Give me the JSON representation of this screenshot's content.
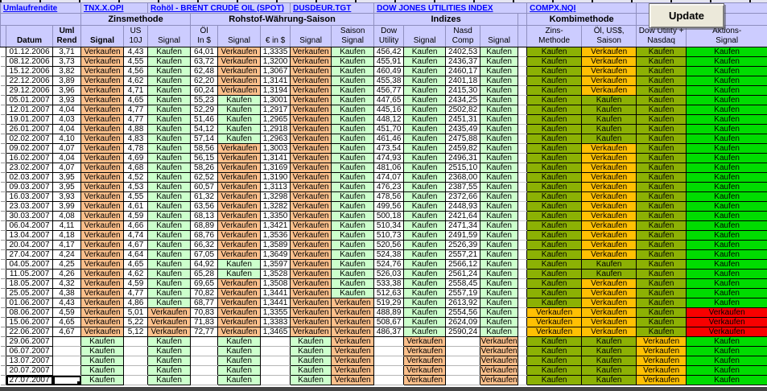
{
  "links": {
    "umlaufrendite": "Umlaufrendite",
    "tnx": "TNX.X.OPI",
    "rohoel": "Rohöl - BRENT CRUDE OIL (SPOT)",
    "dusdeur": "DUSDEUR.TGT",
    "dow_jones": "DOW JONES UTILITIES INDEX",
    "compx": "COMPX.NQI"
  },
  "update_button": "Update",
  "groups": {
    "zinsmethode": "Zinsmethode",
    "rohstoff": "Rohstof-Währung-Saison",
    "indizes": "Indizes",
    "kombimethode": "Kombimethode"
  },
  "header_columns": [
    {
      "t": "",
      "b": "",
      "bold": false
    },
    {
      "t": "",
      "b": "Datum",
      "bold": true
    },
    {
      "t": "Uml",
      "b": "Rend",
      "bold": true
    },
    {
      "t": "",
      "b": "Signal",
      "bold": true
    },
    {
      "t": "US",
      "b": "10J",
      "bold": false
    },
    {
      "t": "",
      "b": "Signal",
      "bold": false
    },
    {
      "t": "Öl",
      "b": "In $",
      "bold": false
    },
    {
      "t": "",
      "b": "Signal",
      "bold": false
    },
    {
      "t": "",
      "b": "€ in $",
      "bold": false
    },
    {
      "t": "",
      "b": "Signal",
      "bold": false
    },
    {
      "t": "Saison",
      "b": "Signal",
      "bold": false
    },
    {
      "t": "Dow",
      "b": "Utility",
      "bold": false
    },
    {
      "t": "",
      "b": "Signal",
      "bold": false
    },
    {
      "t": "Nasd",
      "b": "Comp",
      "bold": false
    },
    {
      "t": "",
      "b": "Signal",
      "bold": false
    },
    {
      "t": "",
      "b": "",
      "bold": false
    },
    {
      "t": "Zins-",
      "b": "Methode",
      "bold": false
    },
    {
      "t": "Öl, US$,",
      "b": "Saison",
      "bold": false
    },
    {
      "t": "Dow Utility +",
      "b": "Nasdaq",
      "bold": false
    },
    {
      "t": "Aktions-",
      "b": "Signal",
      "bold": false
    }
  ],
  "colors": {
    "header": "#CCCCFF",
    "link": "#0000FE",
    "buy": "#CCFFCC",
    "sell": "#FBBF8B",
    "kombi_buy": "#8CB104",
    "kombi_sell": "#FFC003",
    "action_buy": "#00DC00",
    "action_sell": "#F80000"
  },
  "rows": [
    [
      "01.12.2006",
      "3,71",
      "Verkaufen",
      "4,43",
      "Kaufen",
      "64,01",
      "Verkaufen",
      "1,3335",
      "Verkaufen",
      "Kaufen",
      "456,42",
      "Kaufen",
      "2402,53",
      "Kaufen",
      "Kaufen",
      "Verkaufen",
      "Kaufen",
      "Kaufen"
    ],
    [
      "08.12.2006",
      "3,73",
      "Verkaufen",
      "4,55",
      "Kaufen",
      "63,72",
      "Verkaufen",
      "1,3200",
      "Verkaufen",
      "Kaufen",
      "455,91",
      "Kaufen",
      "2436,37",
      "Kaufen",
      "Kaufen",
      "Verkaufen",
      "Kaufen",
      "Kaufen"
    ],
    [
      "15.12.2006",
      "3,82",
      "Verkaufen",
      "4,56",
      "Kaufen",
      "62,48",
      "Verkaufen",
      "1,3067",
      "Verkaufen",
      "Kaufen",
      "460,49",
      "Kaufen",
      "2460,17",
      "Kaufen",
      "Kaufen",
      "Verkaufen",
      "Kaufen",
      "Kaufen"
    ],
    [
      "22.12.2006",
      "3,89",
      "Verkaufen",
      "4,62",
      "Kaufen",
      "62,20",
      "Verkaufen",
      "1,3141",
      "Verkaufen",
      "Kaufen",
      "455,38",
      "Kaufen",
      "2401,18",
      "Kaufen",
      "Kaufen",
      "Verkaufen",
      "Kaufen",
      "Kaufen"
    ],
    [
      "29.12.2006",
      "3,96",
      "Verkaufen",
      "4,71",
      "Kaufen",
      "60,24",
      "Verkaufen",
      "1,3194",
      "Verkaufen",
      "Kaufen",
      "456,77",
      "Kaufen",
      "2415,30",
      "Kaufen",
      "Kaufen",
      "Verkaufen",
      "Kaufen",
      "Kaufen"
    ],
    [
      "05.01.2007",
      "3,93",
      "Verkaufen",
      "4,65",
      "Kaufen",
      "55,23",
      "Kaufen",
      "1,3001",
      "Verkaufen",
      "Kaufen",
      "447,65",
      "Kaufen",
      "2434,25",
      "Kaufen",
      "Kaufen",
      "Kaufen",
      "Kaufen",
      "Kaufen"
    ],
    [
      "12.01.2007",
      "4,04",
      "Verkaufen",
      "4,77",
      "Kaufen",
      "52,29",
      "Kaufen",
      "1,2917",
      "Verkaufen",
      "Kaufen",
      "445,16",
      "Kaufen",
      "2502,82",
      "Kaufen",
      "Kaufen",
      "Kaufen",
      "Kaufen",
      "Kaufen"
    ],
    [
      "19.01.2007",
      "4,03",
      "Verkaufen",
      "4,77",
      "Kaufen",
      "51,46",
      "Kaufen",
      "1,2965",
      "Verkaufen",
      "Kaufen",
      "448,12",
      "Kaufen",
      "2451,31",
      "Kaufen",
      "Kaufen",
      "Kaufen",
      "Kaufen",
      "Kaufen"
    ],
    [
      "26.01.2007",
      "4,04",
      "Verkaufen",
      "4,88",
      "Kaufen",
      "54,12",
      "Kaufen",
      "1,2918",
      "Verkaufen",
      "Kaufen",
      "451,70",
      "Kaufen",
      "2435,49",
      "Kaufen",
      "Kaufen",
      "Kaufen",
      "Kaufen",
      "Kaufen"
    ],
    [
      "02.02.2007",
      "4,10",
      "Verkaufen",
      "4,83",
      "Kaufen",
      "57,14",
      "Kaufen",
      "1,2963",
      "Verkaufen",
      "Kaufen",
      "461,46",
      "Kaufen",
      "2475,88",
      "Kaufen",
      "Kaufen",
      "Kaufen",
      "Kaufen",
      "Kaufen"
    ],
    [
      "09.02.2007",
      "4,07",
      "Verkaufen",
      "4,78",
      "Kaufen",
      "58,56",
      "Verkaufen",
      "1,3003",
      "Verkaufen",
      "Kaufen",
      "473,54",
      "Kaufen",
      "2459,82",
      "Kaufen",
      "Kaufen",
      "Verkaufen",
      "Kaufen",
      "Kaufen"
    ],
    [
      "16.02.2007",
      "4,04",
      "Verkaufen",
      "4,69",
      "Kaufen",
      "56,15",
      "Verkaufen",
      "1,3141",
      "Verkaufen",
      "Kaufen",
      "474,93",
      "Kaufen",
      "2496,31",
      "Kaufen",
      "Kaufen",
      "Verkaufen",
      "Kaufen",
      "Kaufen"
    ],
    [
      "23.02.2007",
      "4,07",
      "Verkaufen",
      "4,68",
      "Kaufen",
      "58,26",
      "Verkaufen",
      "1,3169",
      "Verkaufen",
      "Kaufen",
      "481,06",
      "Kaufen",
      "2515,10",
      "Kaufen",
      "Kaufen",
      "Verkaufen",
      "Kaufen",
      "Kaufen"
    ],
    [
      "02.03.2007",
      "3,95",
      "Verkaufen",
      "4,52",
      "Kaufen",
      "62,52",
      "Verkaufen",
      "1,3190",
      "Verkaufen",
      "Kaufen",
      "474,07",
      "Kaufen",
      "2368,00",
      "Kaufen",
      "Kaufen",
      "Verkaufen",
      "Kaufen",
      "Kaufen"
    ],
    [
      "09.03.2007",
      "3,95",
      "Verkaufen",
      "4,53",
      "Kaufen",
      "60,57",
      "Verkaufen",
      "1,3113",
      "Verkaufen",
      "Kaufen",
      "476,23",
      "Kaufen",
      "2387,55",
      "Kaufen",
      "Kaufen",
      "Verkaufen",
      "Kaufen",
      "Kaufen"
    ],
    [
      "16.03.2007",
      "3,93",
      "Verkaufen",
      "4,55",
      "Kaufen",
      "61,32",
      "Verkaufen",
      "1,3298",
      "Verkaufen",
      "Kaufen",
      "478,56",
      "Kaufen",
      "2372,66",
      "Kaufen",
      "Kaufen",
      "Verkaufen",
      "Kaufen",
      "Kaufen"
    ],
    [
      "23.03.2007",
      "3,99",
      "Verkaufen",
      "4,61",
      "Kaufen",
      "63,56",
      "Verkaufen",
      "1,3282",
      "Verkaufen",
      "Kaufen",
      "499,56",
      "Kaufen",
      "2448,93",
      "Kaufen",
      "Kaufen",
      "Verkaufen",
      "Kaufen",
      "Kaufen"
    ],
    [
      "30.03.2007",
      "4,08",
      "Verkaufen",
      "4,59",
      "Kaufen",
      "68,13",
      "Verkaufen",
      "1,3350",
      "Verkaufen",
      "Kaufen",
      "500,18",
      "Kaufen",
      "2421,64",
      "Kaufen",
      "Kaufen",
      "Verkaufen",
      "Kaufen",
      "Kaufen"
    ],
    [
      "06.04.2007",
      "4,11",
      "Verkaufen",
      "4,66",
      "Kaufen",
      "68,89",
      "Verkaufen",
      "1,3421",
      "Verkaufen",
      "Kaufen",
      "510,34",
      "Kaufen",
      "2471,34",
      "Kaufen",
      "Kaufen",
      "Verkaufen",
      "Kaufen",
      "Kaufen"
    ],
    [
      "13.04.2007",
      "4,18",
      "Verkaufen",
      "4,74",
      "Kaufen",
      "68,76",
      "Verkaufen",
      "1,3536",
      "Verkaufen",
      "Kaufen",
      "510,73",
      "Kaufen",
      "2491,59",
      "Kaufen",
      "Kaufen",
      "Verkaufen",
      "Kaufen",
      "Kaufen"
    ],
    [
      "20.04.2007",
      "4,17",
      "Verkaufen",
      "4,67",
      "Kaufen",
      "66,32",
      "Verkaufen",
      "1,3589",
      "Verkaufen",
      "Kaufen",
      "520,56",
      "Kaufen",
      "2526,39",
      "Kaufen",
      "Kaufen",
      "Verkaufen",
      "Kaufen",
      "Kaufen"
    ],
    [
      "27.04.2007",
      "4,24",
      "Verkaufen",
      "4,64",
      "Kaufen",
      "67,05",
      "Verkaufen",
      "1,3649",
      "Verkaufen",
      "Kaufen",
      "524,38",
      "Kaufen",
      "2557,21",
      "Kaufen",
      "Kaufen",
      "Verkaufen",
      "Kaufen",
      "Kaufen"
    ],
    [
      "04.05.2007",
      "4,25",
      "Verkaufen",
      "4,65",
      "Kaufen",
      "64,92",
      "Kaufen",
      "1,3597",
      "Verkaufen",
      "Kaufen",
      "524,76",
      "Kaufen",
      "2566,12",
      "Kaufen",
      "Kaufen",
      "Kaufen",
      "Kaufen",
      "Kaufen"
    ],
    [
      "11.05.2007",
      "4,26",
      "Verkaufen",
      "4,62",
      "Kaufen",
      "65,28",
      "Kaufen",
      "1,3528",
      "Verkaufen",
      "Kaufen",
      "526,03",
      "Kaufen",
      "2561,24",
      "Kaufen",
      "Kaufen",
      "Kaufen",
      "Kaufen",
      "Kaufen"
    ],
    [
      "18.05.2007",
      "4,32",
      "Verkaufen",
      "4,59",
      "Kaufen",
      "69,65",
      "Verkaufen",
      "1,3508",
      "Verkaufen",
      "Kaufen",
      "533,38",
      "Kaufen",
      "2558,45",
      "Kaufen",
      "Kaufen",
      "Verkaufen",
      "Kaufen",
      "Kaufen"
    ],
    [
      "25.05.2007",
      "4,38",
      "Verkaufen",
      "4,77",
      "Kaufen",
      "70,82",
      "Verkaufen",
      "1,3441",
      "Verkaufen",
      "Kaufen",
      "512,63",
      "Kaufen",
      "2557,19",
      "Kaufen",
      "Kaufen",
      "Verkaufen",
      "Kaufen",
      "Kaufen"
    ],
    [
      "01.06.2007",
      "4,43",
      "Verkaufen",
      "4,86",
      "Kaufen",
      "68,77",
      "Verkaufen",
      "1,3441",
      "Verkaufen",
      "Verkaufen",
      "519,29",
      "Kaufen",
      "2613,92",
      "Kaufen",
      "Kaufen",
      "Verkaufen",
      "Kaufen",
      "Kaufen"
    ],
    [
      "08.06.2007",
      "4,59",
      "Verkaufen",
      "5,01",
      "Verkaufen",
      "70,83",
      "Verkaufen",
      "1,3355",
      "Verkaufen",
      "Verkaufen",
      "488,89",
      "Kaufen",
      "2554,56",
      "Kaufen",
      "Verkaufen",
      "Verkaufen",
      "Kaufen",
      "Verkaufen"
    ],
    [
      "15.06.2007",
      "4,65",
      "Verkaufen",
      "5,22",
      "Verkaufen",
      "71,83",
      "Verkaufen",
      "1,3383",
      "Verkaufen",
      "Verkaufen",
      "508,67",
      "Kaufen",
      "2624,09",
      "Kaufen",
      "Verkaufen",
      "Verkaufen",
      "Kaufen",
      "Verkaufen"
    ],
    [
      "22.06.2007",
      "4,67",
      "Verkaufen",
      "5,12",
      "Verkaufen",
      "72,77",
      "Verkaufen",
      "1,3465",
      "Verkaufen",
      "Verkaufen",
      "486,37",
      "Kaufen",
      "2590,24",
      "Kaufen",
      "Verkaufen",
      "Verkaufen",
      "Kaufen",
      "Verkaufen"
    ],
    [
      "29.06.2007",
      "",
      "Kaufen",
      "",
      "Kaufen",
      "",
      "Kaufen",
      "",
      "Kaufen",
      "Verkaufen",
      "",
      "Verkaufen",
      "",
      "Verkaufen",
      "Kaufen",
      "Kaufen",
      "Verkaufen",
      "Kaufen"
    ],
    [
      "06.07.2007",
      "",
      "Kaufen",
      "",
      "Kaufen",
      "",
      "Kaufen",
      "",
      "Kaufen",
      "Verkaufen",
      "",
      "Verkaufen",
      "",
      "Verkaufen",
      "Kaufen",
      "Kaufen",
      "Verkaufen",
      "Kaufen"
    ],
    [
      "13.07.2007",
      "",
      "Kaufen",
      "",
      "Kaufen",
      "",
      "Kaufen",
      "",
      "Kaufen",
      "Verkaufen",
      "",
      "Verkaufen",
      "",
      "Verkaufen",
      "Kaufen",
      "Kaufen",
      "Verkaufen",
      "Kaufen"
    ],
    [
      "20.07.2007",
      "",
      "Kaufen",
      "",
      "Kaufen",
      "",
      "Kaufen",
      "",
      "Kaufen",
      "Verkaufen",
      "",
      "Verkaufen",
      "",
      "Verkaufen",
      "Kaufen",
      "Kaufen",
      "Verkaufen",
      "Kaufen"
    ],
    [
      "27.07.2007",
      "",
      "Kaufen",
      "",
      "Kaufen",
      "",
      "Kaufen",
      "",
      "Kaufen",
      "Verkaufen",
      "",
      "Verkaufen",
      "",
      "Verkaufen",
      "Kaufen",
      "Kaufen",
      "Verkaufen",
      "Kaufen"
    ]
  ],
  "buy_label": "Kaufen",
  "sell_label": "Verkaufen"
}
